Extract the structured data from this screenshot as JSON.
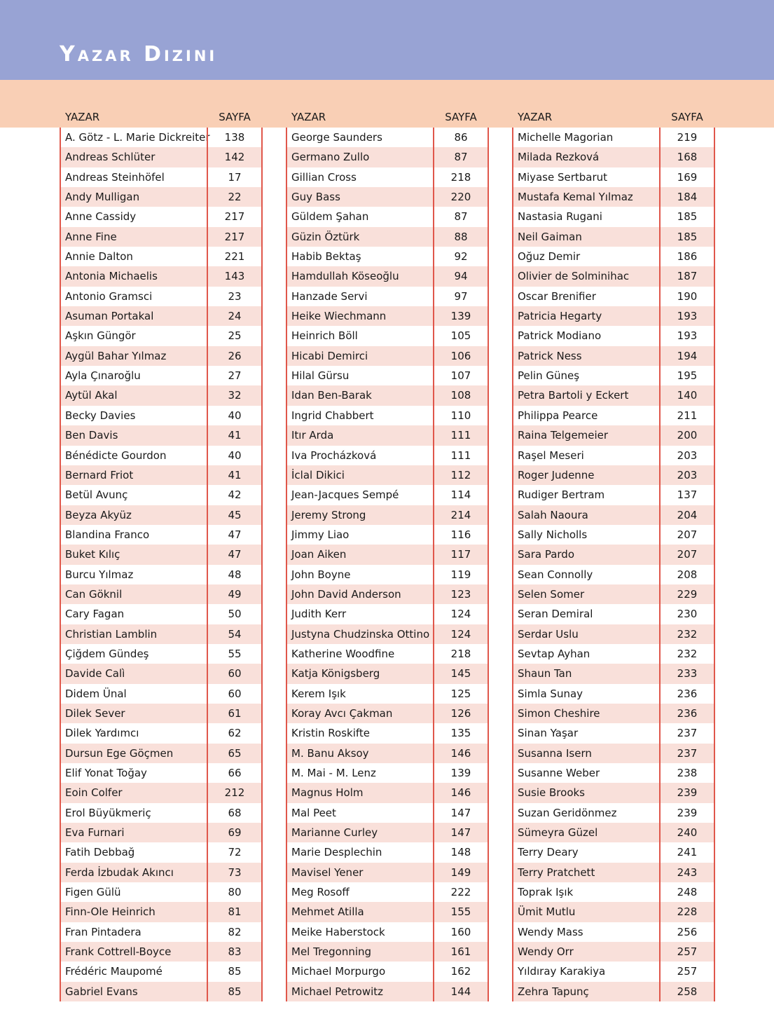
{
  "title": "Yazar Dizini",
  "colors": {
    "header_band": "#98a3d4",
    "column_header_band": "#f9cfb5",
    "row_stripe": "#f9e0da",
    "rule": "#e0574b"
  },
  "columns_header": {
    "name": "YAZAR",
    "page": "SAYFA"
  },
  "columns": [
    [
      [
        "A. Götz - L. Marie Dickreiter",
        "138"
      ],
      [
        "Andreas Schlüter",
        "142"
      ],
      [
        "Andreas Steinhöfel",
        "17"
      ],
      [
        "Andy Mulligan",
        "22"
      ],
      [
        "Anne Cassidy",
        "217"
      ],
      [
        "Anne Fine",
        "217"
      ],
      [
        "Annie Dalton",
        "221"
      ],
      [
        "Antonia Michaelis",
        "143"
      ],
      [
        "Antonio Gramsci",
        "23"
      ],
      [
        "Asuman Portakal",
        "24"
      ],
      [
        "Aşkın Güngör",
        "25"
      ],
      [
        "Aygül Bahar Yılmaz",
        "26"
      ],
      [
        "Ayla Çınaroğlu",
        "27"
      ],
      [
        "Aytül Akal",
        "32"
      ],
      [
        "Becky Davies",
        "40"
      ],
      [
        "Ben Davis",
        "41"
      ],
      [
        "Bénédicte Gourdon",
        "40"
      ],
      [
        "Bernard Friot",
        "41"
      ],
      [
        "Betül Avunç",
        "42"
      ],
      [
        "Beyza Akyüz",
        "45"
      ],
      [
        "Blandina Franco",
        "47"
      ],
      [
        "Buket Kılıç",
        "47"
      ],
      [
        "Burcu Yılmaz",
        "48"
      ],
      [
        "Can Göknil",
        "49"
      ],
      [
        "Cary Fagan",
        "50"
      ],
      [
        "Christian Lamblin",
        "54"
      ],
      [
        "Çiğdem Gündeş",
        "55"
      ],
      [
        "Davide Calì",
        "60"
      ],
      [
        "Didem Ünal",
        "60"
      ],
      [
        "Dilek Sever",
        "61"
      ],
      [
        "Dilek Yardımcı",
        "62"
      ],
      [
        "Dursun Ege Göçmen",
        "65"
      ],
      [
        "Elif Yonat Toğay",
        "66"
      ],
      [
        "Eoin Colfer",
        "212"
      ],
      [
        "Erol Büyükmeriç",
        "68"
      ],
      [
        "Eva Furnari",
        "69"
      ],
      [
        "Fatih Debbağ",
        "72"
      ],
      [
        "Ferda İzbudak Akıncı",
        "73"
      ],
      [
        "Figen Gülü",
        "80"
      ],
      [
        "Finn-Ole Heinrich",
        "81"
      ],
      [
        "Fran Pintadera",
        "82"
      ],
      [
        "Frank Cottrell-Boyce",
        "83"
      ],
      [
        "Frédéric Maupomé",
        "85"
      ],
      [
        "Gabriel Evans",
        "85"
      ]
    ],
    [
      [
        "George Saunders",
        "86"
      ],
      [
        "Germano Zullo",
        "87"
      ],
      [
        "Gillian Cross",
        "218"
      ],
      [
        "Guy Bass",
        "220"
      ],
      [
        "Güldem Şahan",
        "87"
      ],
      [
        "Güzin Öztürk",
        "88"
      ],
      [
        "Habib Bektaş",
        "92"
      ],
      [
        "Hamdullah Köseoğlu",
        "94"
      ],
      [
        "Hanzade Servi",
        "97"
      ],
      [
        "Heike Wiechmann",
        "139"
      ],
      [
        "Heinrich Böll",
        "105"
      ],
      [
        "Hicabi Demirci",
        "106"
      ],
      [
        "Hilal Gürsu",
        "107"
      ],
      [
        "Idan Ben-Barak",
        "108"
      ],
      [
        "Ingrid Chabbert",
        "110"
      ],
      [
        "Itır Arda",
        "111"
      ],
      [
        "Iva Procházková",
        "111"
      ],
      [
        "İclal Dikici",
        "112"
      ],
      [
        "Jean-Jacques Sempé",
        "114"
      ],
      [
        "Jeremy Strong",
        "214"
      ],
      [
        "Jimmy Liao",
        "116"
      ],
      [
        "Joan Aiken",
        "117"
      ],
      [
        "John Boyne",
        "119"
      ],
      [
        "John David Anderson",
        "123"
      ],
      [
        "Judith Kerr",
        "124"
      ],
      [
        "Justyna Chudzinska Ottino",
        "124"
      ],
      [
        "Katherine Woodfine",
        "218"
      ],
      [
        "Katja Königsberg",
        "145"
      ],
      [
        "Kerem Işık",
        "125"
      ],
      [
        "Koray Avcı Çakman",
        "126"
      ],
      [
        "Kristin Roskifte",
        "135"
      ],
      [
        "M. Banu Aksoy",
        "146"
      ],
      [
        "M. Mai - M. Lenz",
        "139"
      ],
      [
        "Magnus Holm",
        "146"
      ],
      [
        "Mal Peet",
        "147"
      ],
      [
        "Marianne Curley",
        "147"
      ],
      [
        "Marie Desplechin",
        "148"
      ],
      [
        "Mavisel Yener",
        "149"
      ],
      [
        "Meg Rosoff",
        "222"
      ],
      [
        "Mehmet Atilla",
        "155"
      ],
      [
        "Meike Haberstock",
        "160"
      ],
      [
        "Mel Tregonning",
        "161"
      ],
      [
        "Michael Morpurgo",
        "162"
      ],
      [
        "Michael Petrowitz",
        "144"
      ]
    ],
    [
      [
        "Michelle Magorian",
        "219"
      ],
      [
        "Milada Rezková",
        "168"
      ],
      [
        "Miyase Sertbarut",
        "169"
      ],
      [
        "Mustafa Kemal Yılmaz",
        "184"
      ],
      [
        "Nastasia Rugani",
        "185"
      ],
      [
        "Neil Gaiman",
        "185"
      ],
      [
        "Oğuz Demir",
        "186"
      ],
      [
        "Olivier de Solminihac",
        "187"
      ],
      [
        "Oscar Brenifier",
        "190"
      ],
      [
        "Patricia Hegarty",
        "193"
      ],
      [
        "Patrick Modiano",
        "193"
      ],
      [
        "Patrick Ness",
        "194"
      ],
      [
        "Pelin Güneş",
        "195"
      ],
      [
        "Petra Bartoli y Eckert",
        "140"
      ],
      [
        "Philippa Pearce",
        "211"
      ],
      [
        "Raina Telgemeier",
        "200"
      ],
      [
        "Raşel Meseri",
        "203"
      ],
      [
        "Roger Judenne",
        "203"
      ],
      [
        "Rudiger Bertram",
        "137"
      ],
      [
        "Salah Naoura",
        "204"
      ],
      [
        "Sally Nicholls",
        "207"
      ],
      [
        "Sara Pardo",
        "207"
      ],
      [
        "Sean Connolly",
        "208"
      ],
      [
        "Selen Somer",
        "229"
      ],
      [
        "Seran Demiral",
        "230"
      ],
      [
        "Serdar Uslu",
        "232"
      ],
      [
        "Sevtap Ayhan",
        "232"
      ],
      [
        "Shaun Tan",
        "233"
      ],
      [
        "Simla Sunay",
        "236"
      ],
      [
        "Simon Cheshire",
        "236"
      ],
      [
        "Sinan Yaşar",
        "237"
      ],
      [
        "Susanna Isern",
        "237"
      ],
      [
        "Susanne Weber",
        "238"
      ],
      [
        "Susie Brooks",
        "239"
      ],
      [
        "Suzan Geridönmez",
        "239"
      ],
      [
        "Sümeyra Güzel",
        "240"
      ],
      [
        "Terry Deary",
        "241"
      ],
      [
        "Terry Pratchett",
        "243"
      ],
      [
        "Toprak Işık",
        "248"
      ],
      [
        "Ümit Mutlu",
        "228"
      ],
      [
        "Wendy Mass",
        "256"
      ],
      [
        "Wendy Orr",
        "257"
      ],
      [
        "Yıldıray Karakiya",
        "257"
      ],
      [
        "Zehra Tapunç",
        "258"
      ]
    ]
  ]
}
